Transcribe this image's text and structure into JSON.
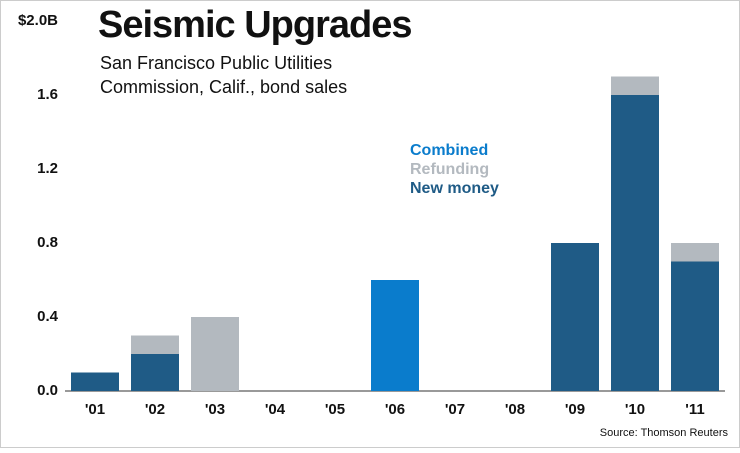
{
  "chart_data": {
    "type": "stacked-bar",
    "title": "Seismic Upgrades",
    "subtitle": [
      "San Francisco Public Utilities",
      "Commission, Calif., bond sales"
    ],
    "source": "Source: Thomson Reuters",
    "categories": [
      "'01",
      "'02",
      "'03",
      "'04",
      "'05",
      "'06",
      "'07",
      "'08",
      "'09",
      "'10",
      "'11"
    ],
    "series": [
      {
        "name": "New money",
        "color": "#1f5b86",
        "values": [
          0.1,
          0.2,
          null,
          null,
          null,
          null,
          null,
          null,
          0.8,
          1.6,
          0.7
        ]
      },
      {
        "name": "Refunding",
        "color": "#b3b9bf",
        "values": [
          null,
          0.1,
          0.4,
          null,
          null,
          null,
          null,
          null,
          null,
          0.1,
          0.1
        ]
      },
      {
        "name": "Combined",
        "color": "#0a7ccc",
        "values": [
          null,
          null,
          null,
          null,
          null,
          0.6,
          null,
          null,
          null,
          null,
          null
        ]
      }
    ],
    "ylim": [
      0,
      2
    ],
    "yticks": [
      {
        "value": 0,
        "label": "0.0"
      },
      0.4,
      0.8,
      1.2,
      1.6,
      {
        "value": 2,
        "label": "$2.0B"
      }
    ]
  }
}
